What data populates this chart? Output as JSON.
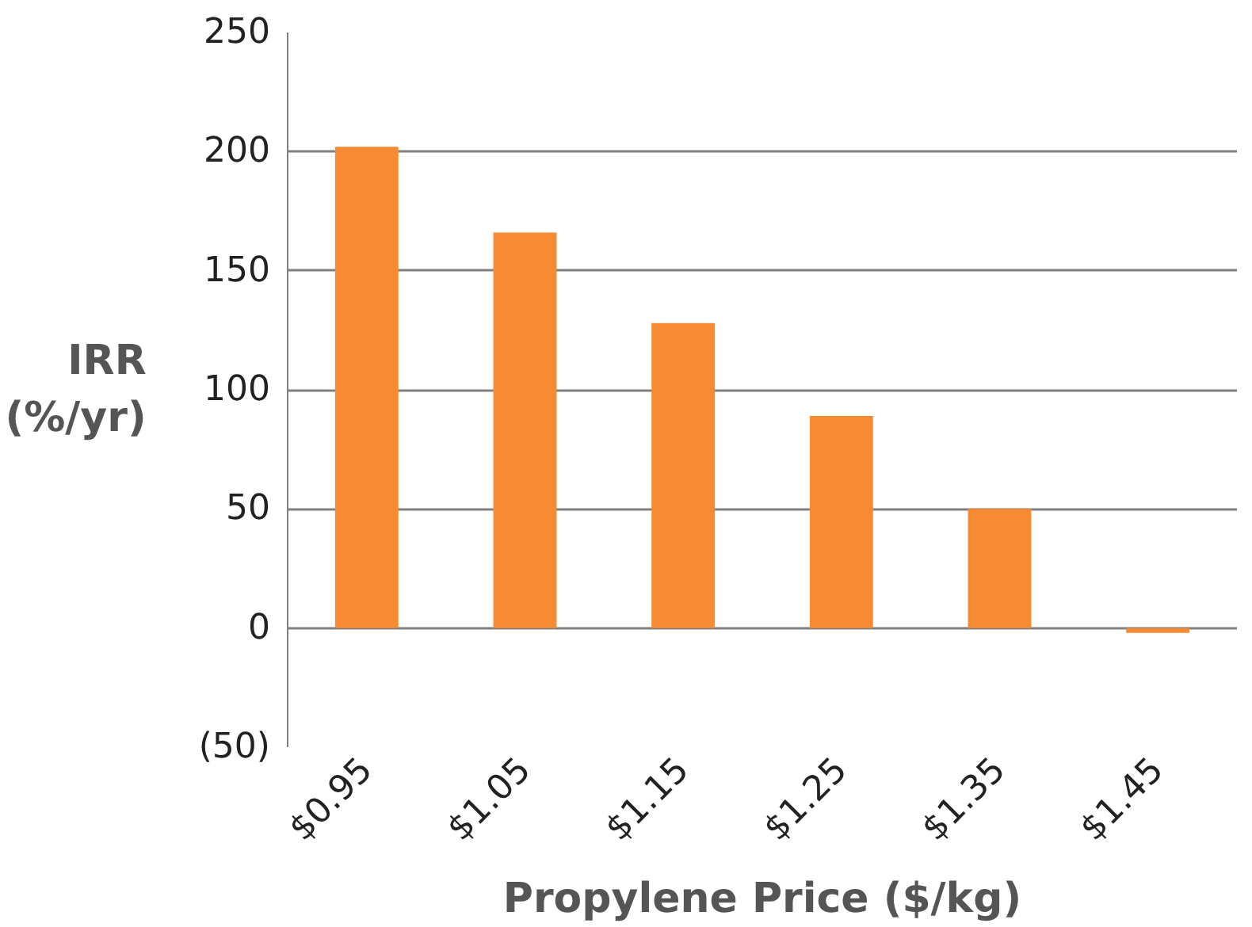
{
  "chart_data": {
    "type": "bar",
    "xlabel": "Propylene Price ($/kg)",
    "ylabel": "IRR\n(%/yr)",
    "categories": [
      "$0.95",
      "$1.05",
      "$1.15",
      "$1.25",
      "$1.35",
      "$1.45"
    ],
    "values": [
      202,
      166,
      128,
      89,
      50,
      -2
    ],
    "color": "#f68b33",
    "ylim": [
      -50,
      250
    ],
    "yticks": [
      {
        "value": -50,
        "label": "(50)"
      },
      0,
      50,
      100,
      150,
      200,
      250
    ],
    "grid": "y"
  }
}
